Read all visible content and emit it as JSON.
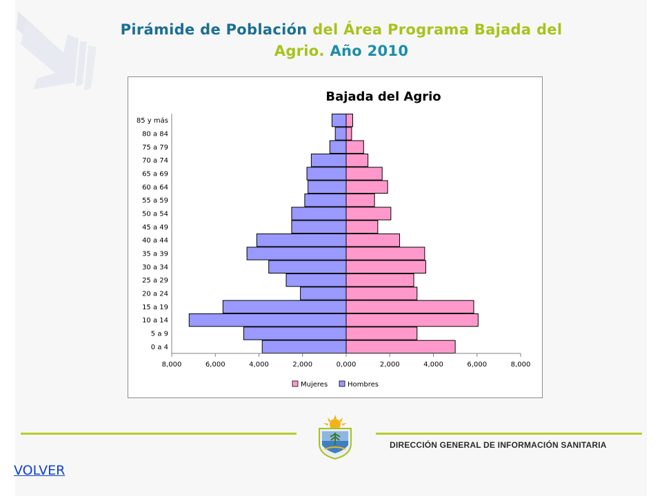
{
  "header": {
    "title_part1": "Pirámide de Población",
    "title_part2": "del Área Programa Bajada del",
    "title_part3": "Agrio.",
    "title_part4": "Año 2010"
  },
  "colors": {
    "title_blue": "#1a6f95",
    "title_green": "#a9c21c",
    "mujeres": "#ff99cc",
    "hombres": "#9999ff",
    "footer_line": "#b8cc2b"
  },
  "chart_data": {
    "type": "bar",
    "orientation": "horizontal",
    "title": "Bajada del Agrio",
    "categories": [
      "0 a 4",
      "5 a 9",
      "10 a 14",
      "15 a 19",
      "20 a 24",
      "25 a 29",
      "30 a 34",
      "35 a 39",
      "40 a 44",
      "45 a 49",
      "50 a 54",
      "55 a 59",
      "60 a 64",
      "65 a 69",
      "70 a 74",
      "75 a 79",
      "80 a 84",
      "85 y más"
    ],
    "series": [
      {
        "name": "Mujeres",
        "values": [
          5000,
          3250,
          6050,
          5850,
          3250,
          3100,
          3650,
          3600,
          2450,
          1450,
          2050,
          1300,
          1900,
          1650,
          1000,
          800,
          250,
          300
        ]
      },
      {
        "name": "Hombres",
        "values": [
          3850,
          4700,
          7200,
          5650,
          2100,
          2750,
          3550,
          4550,
          4100,
          2500,
          2500,
          1900,
          1750,
          1800,
          1600,
          750,
          500,
          650
        ]
      }
    ],
    "x_ticks": [
      "8,000",
      "6,000",
      "4,000",
      "2,000",
      "0,000",
      "2,000",
      "4,000",
      "6,000",
      "8,000"
    ],
    "xlim": [
      -8000,
      8000
    ],
    "legend": [
      "Mujeres",
      "Hombres"
    ],
    "legend_position": "bottom",
    "grid": false
  },
  "footer": {
    "org": "DIRECCIÓN GENERAL DE INFORMACIÓN SANITARIA"
  },
  "nav": {
    "back_link": "VOLVER"
  }
}
